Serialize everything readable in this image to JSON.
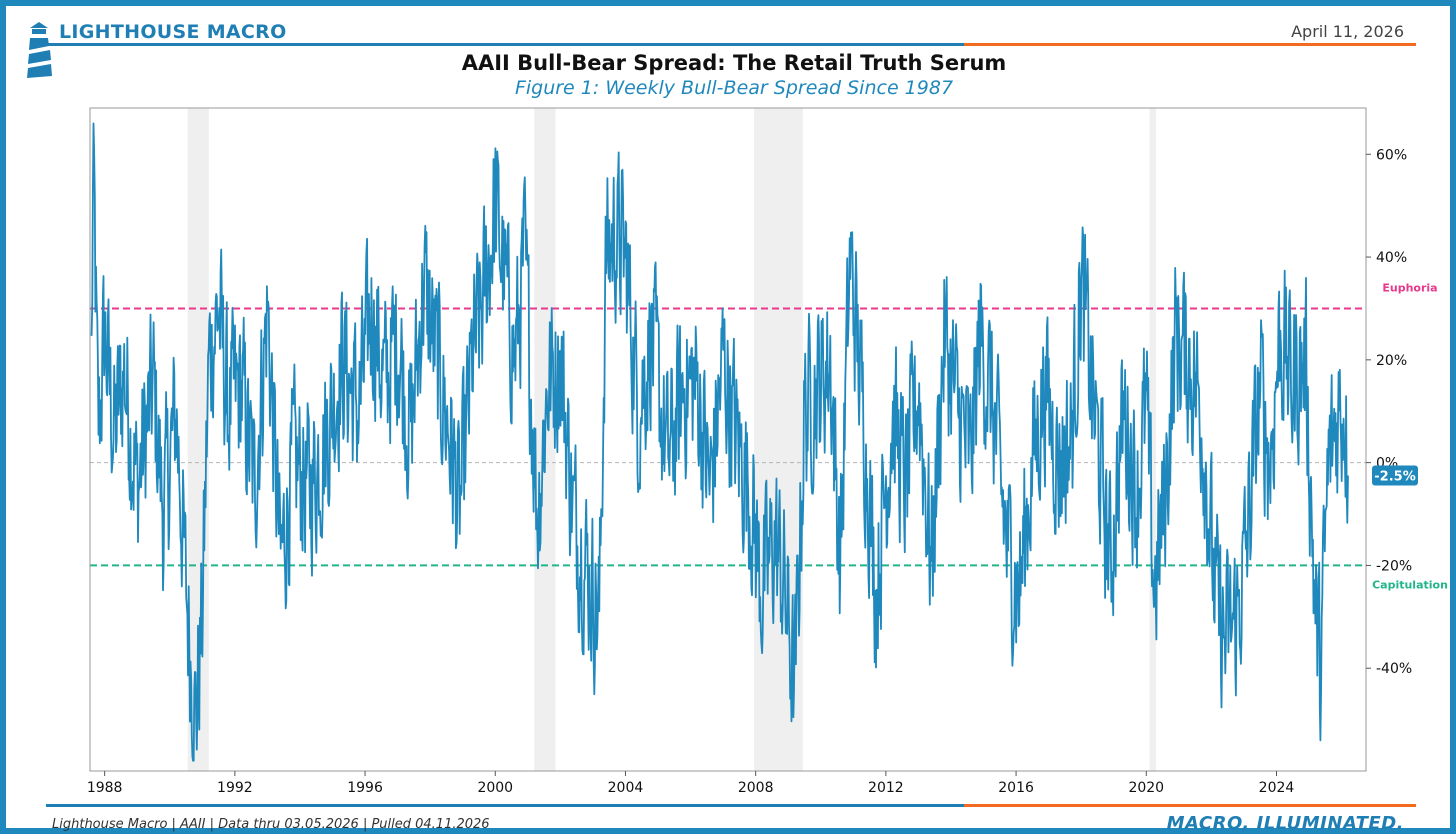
{
  "header": {
    "brand": "LIGHTHOUSE MACRO",
    "date": "April 11, 2026",
    "brand_color": "#1f7fb5",
    "accent_color": "#f26b21"
  },
  "chart_data": {
    "type": "line",
    "title": "AAII Bull-Bear Spread: The Retail Truth Serum",
    "subtitle": "Figure 1: Weekly Bull-Bear Spread Since 1987",
    "xlabel": "",
    "ylabel": "",
    "xlim": [
      1987.55,
      2026.75
    ],
    "ylim": [
      -60,
      69
    ],
    "x_ticks": [
      1988,
      1992,
      1996,
      2000,
      2004,
      2008,
      2012,
      2016,
      2020,
      2024
    ],
    "y_ticks": [
      60,
      40,
      20,
      0,
      -20,
      -40
    ],
    "y_tick_labels": [
      "60%",
      "40%",
      "20%",
      "0%",
      "-20%",
      "-40%"
    ],
    "y_axis_side": "right",
    "series": [
      {
        "color": "#1f88bd",
        "frequency": "weekly",
        "anchors": [
          [
            1987.6,
            20
          ],
          [
            1987.65,
            60
          ],
          [
            1987.8,
            5
          ],
          [
            1988.0,
            25
          ],
          [
            1988.3,
            5
          ],
          [
            1988.6,
            18
          ],
          [
            1989.0,
            -5
          ],
          [
            1989.5,
            15
          ],
          [
            1989.8,
            -10
          ],
          [
            1990.2,
            10
          ],
          [
            1990.5,
            -25
          ],
          [
            1990.8,
            -50
          ],
          [
            1991.0,
            -30
          ],
          [
            1991.2,
            20
          ],
          [
            1991.5,
            30
          ],
          [
            1991.8,
            10
          ],
          [
            1992.2,
            15
          ],
          [
            1992.6,
            -5
          ],
          [
            1993.0,
            30
          ],
          [
            1993.4,
            -20
          ],
          [
            1993.8,
            0
          ],
          [
            1994.3,
            -5
          ],
          [
            1994.8,
            5
          ],
          [
            1995.3,
            20
          ],
          [
            1995.8,
            10
          ],
          [
            1996.2,
            30
          ],
          [
            1996.6,
            15
          ],
          [
            1997.0,
            25
          ],
          [
            1997.4,
            5
          ],
          [
            1997.8,
            35
          ],
          [
            1998.2,
            20
          ],
          [
            1998.6,
            5
          ],
          [
            1998.9,
            -10
          ],
          [
            1999.3,
            20
          ],
          [
            1999.6,
            30
          ],
          [
            2000.0,
            50
          ],
          [
            2000.3,
            35
          ],
          [
            2000.6,
            20
          ],
          [
            2000.9,
            40
          ],
          [
            2001.3,
            -10
          ],
          [
            2001.6,
            15
          ],
          [
            2002.0,
            20
          ],
          [
            2002.4,
            -10
          ],
          [
            2002.8,
            -20
          ],
          [
            2003.2,
            -30
          ],
          [
            2003.4,
            40
          ],
          [
            2003.7,
            45
          ],
          [
            2004.0,
            40
          ],
          [
            2004.4,
            10
          ],
          [
            2004.8,
            25
          ],
          [
            2005.3,
            0
          ],
          [
            2005.8,
            15
          ],
          [
            2006.2,
            15
          ],
          [
            2006.6,
            -5
          ],
          [
            2007.0,
            20
          ],
          [
            2007.4,
            5
          ],
          [
            2007.8,
            -5
          ],
          [
            2008.2,
            -25
          ],
          [
            2008.6,
            -15
          ],
          [
            2008.9,
            -25
          ],
          [
            2009.2,
            -45
          ],
          [
            2009.5,
            10
          ],
          [
            2009.9,
            15
          ],
          [
            2010.3,
            20
          ],
          [
            2010.6,
            -20
          ],
          [
            2010.9,
            40
          ],
          [
            2011.3,
            10
          ],
          [
            2011.7,
            -25
          ],
          [
            2012.2,
            10
          ],
          [
            2012.6,
            -5
          ],
          [
            2013.0,
            15
          ],
          [
            2013.4,
            -20
          ],
          [
            2013.8,
            25
          ],
          [
            2014.2,
            10
          ],
          [
            2014.6,
            0
          ],
          [
            2014.9,
            25
          ],
          [
            2015.3,
            10
          ],
          [
            2015.7,
            -15
          ],
          [
            2016.1,
            -25
          ],
          [
            2016.5,
            0
          ],
          [
            2016.9,
            15
          ],
          [
            2017.3,
            0
          ],
          [
            2017.7,
            5
          ],
          [
            2018.0,
            35
          ],
          [
            2018.4,
            10
          ],
          [
            2018.9,
            -20
          ],
          [
            2019.3,
            10
          ],
          [
            2019.7,
            -5
          ],
          [
            2020.0,
            10
          ],
          [
            2020.25,
            -25
          ],
          [
            2020.6,
            -5
          ],
          [
            2020.9,
            25
          ],
          [
            2021.3,
            20
          ],
          [
            2021.7,
            10
          ],
          [
            2022.1,
            -25
          ],
          [
            2022.4,
            -35
          ],
          [
            2022.8,
            -30
          ],
          [
            2023.1,
            -15
          ],
          [
            2023.5,
            15
          ],
          [
            2023.8,
            0
          ],
          [
            2024.1,
            25
          ],
          [
            2024.5,
            15
          ],
          [
            2024.9,
            20
          ],
          [
            2025.2,
            -30
          ],
          [
            2025.35,
            -40
          ],
          [
            2025.6,
            0
          ],
          [
            2025.9,
            10
          ],
          [
            2026.1,
            12
          ],
          [
            2026.2,
            -2.5
          ]
        ]
      }
    ],
    "thresholds": [
      {
        "label": "Euphoria",
        "value": 30,
        "color": "#e8398c"
      },
      {
        "label": "Capitulation",
        "value": -20,
        "color": "#22b58a"
      }
    ],
    "zero_line_color": "#b5b5b5",
    "recessions": [
      [
        1990.55,
        1991.2
      ],
      [
        2001.2,
        2001.85
      ],
      [
        2007.95,
        2009.45
      ],
      [
        2020.1,
        2020.3
      ]
    ],
    "last_value_label": "-2.5%",
    "grid": false,
    "legend": "none"
  },
  "footer": {
    "source": "Lighthouse Macro | AAII | Data thru 03.05.2026 | Pulled 04.11.2026",
    "tagline": "MACRO, ILLUMINATED."
  }
}
